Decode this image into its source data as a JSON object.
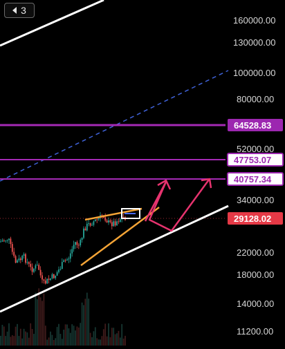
{
  "toolbar": {
    "indicators_count": "3",
    "toggle_icon": "chevron-left-icon"
  },
  "price_axis": {
    "labels": [
      "160000.00",
      "130000.00",
      "100000.00",
      "80000.00",
      "52000.00",
      "34000.00",
      "22000.00",
      "18000.00",
      "14000.00",
      "11200.00"
    ]
  },
  "price_tags": {
    "level_1": "64528.83",
    "level_2": "47753.07",
    "level_3": "40757.34",
    "current": "29128.02"
  },
  "colors": {
    "background": "#000000",
    "support_line": "#ffffff",
    "level_line": "#a52ab5",
    "level_tag_bg": "#9c27b0",
    "current_tag_bg": "#e53946",
    "dashed_channel": "#3f62d8",
    "channel_orange": "#f4a436",
    "projection": "#e6336e",
    "candle_up": "#26a69a",
    "candle_down": "#ef5350"
  },
  "chart_data": {
    "type": "candlestick",
    "title": "",
    "xlabel": "",
    "ylabel": "",
    "y_scale": "log",
    "y_tick_labels": [
      160000,
      130000,
      100000,
      80000,
      52000,
      34000,
      22000,
      18000,
      14000,
      11200
    ],
    "horizontal_levels": [
      64528.83,
      47753.07,
      40757.34
    ],
    "current_price": 29128.02,
    "grid": false,
    "legend": "none"
  }
}
